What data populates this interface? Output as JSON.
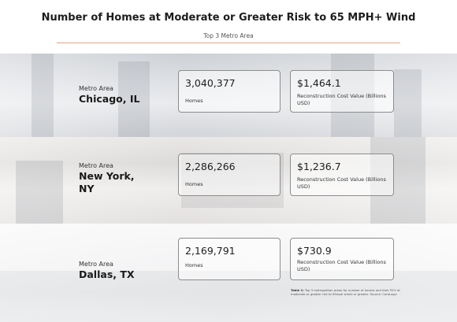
{
  "header": {
    "title": "Number of Homes at Moderate or Greater Risk to 65 MPH+ Wind",
    "subtitle": "Top 3 Metro Area"
  },
  "metros": [
    {
      "label": "Metro Area",
      "name": "Chicago, IL",
      "homes_value": "3,040,377",
      "homes_label": "Homes",
      "cost_value": "$1,464.1",
      "cost_label": "Reconstruction Cost Value (Billions USD)"
    },
    {
      "label": "Metro Area",
      "name": "New York, NY",
      "homes_value": "2,286,266",
      "homes_label": "Homes",
      "cost_value": "$1,236.7",
      "cost_label": "Reconstruction Cost Value (Billions USD)"
    },
    {
      "label": "Metro Area",
      "name": "Dallas, TX",
      "homes_value": "2,169,791",
      "homes_label": "Homes",
      "cost_value": "$730.9",
      "cost_label": "Reconstruction Cost Value (Billions USD)"
    }
  ],
  "note": {
    "prefix": "Table 1:",
    "text": "Top 3 metropolitan areas for number of homes and their RCV at moderate or greater risk to 65mph winds or greater. Source: CoreLogic"
  }
}
